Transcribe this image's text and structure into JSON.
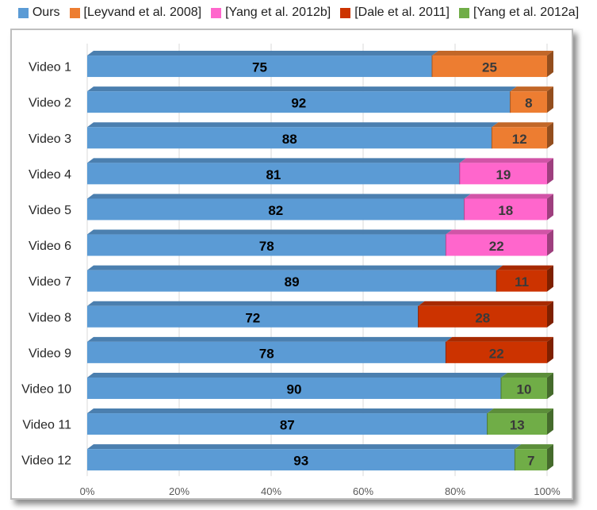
{
  "chart_data": {
    "type": "bar",
    "orientation": "horizontal",
    "stacked": true,
    "normalized_percent": true,
    "title": "",
    "xlabel": "",
    "ylabel": "",
    "xlim": [
      0,
      100
    ],
    "grid": true,
    "legend_position": "top",
    "categories": [
      "Video  1",
      "Video  2",
      "Video  3",
      "Video  4",
      "Video  5",
      "Video  6",
      "Video  7",
      "Video  8",
      "Video  9",
      "Video 10",
      "Video 11",
      "Video 12"
    ],
    "x_ticks": [
      "0%",
      "20%",
      "40%",
      "60%",
      "80%",
      "100%"
    ],
    "series": [
      {
        "name": "Ours",
        "color": "#5b9bd5",
        "values": [
          75,
          92,
          88,
          81,
          82,
          78,
          89,
          72,
          78,
          90,
          87,
          93
        ]
      },
      {
        "name": "[Leyvand et al. 2008]",
        "color": "#ed7d31",
        "values": [
          25,
          8,
          12,
          null,
          null,
          null,
          null,
          null,
          null,
          null,
          null,
          null
        ]
      },
      {
        "name": "[Yang et al. 2012b]",
        "color": "#ff66cc",
        "values": [
          null,
          null,
          null,
          19,
          18,
          22,
          null,
          null,
          null,
          null,
          null,
          null
        ]
      },
      {
        "name": "[Dale et al. 2011]",
        "color": "#cc3300",
        "values": [
          null,
          null,
          null,
          null,
          null,
          null,
          11,
          28,
          22,
          null,
          null,
          null
        ]
      },
      {
        "name": "[Yang et al. 2012a]",
        "color": "#70ad47",
        "values": [
          null,
          null,
          null,
          null,
          null,
          null,
          null,
          null,
          null,
          10,
          13,
          7
        ]
      }
    ]
  }
}
